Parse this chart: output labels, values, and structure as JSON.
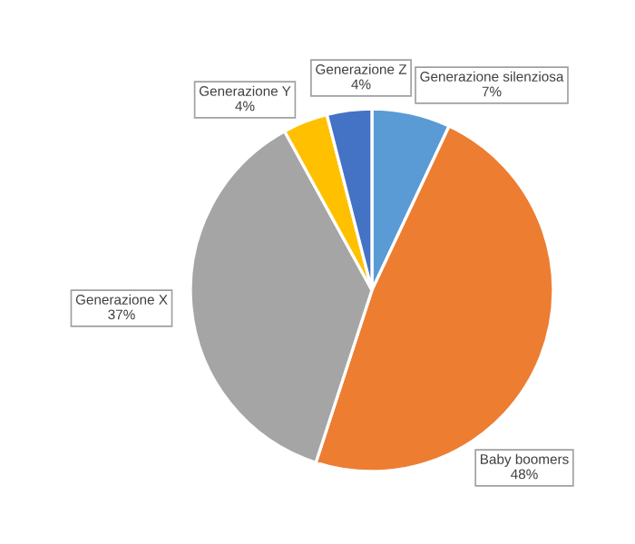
{
  "chart_data": {
    "type": "pie",
    "categories": [
      "Generazione silenziosa",
      "Baby boomers",
      "Generazione X",
      "Generazione Y",
      "Generazione Z"
    ],
    "values": [
      7,
      48,
      37,
      4,
      4
    ],
    "value_labels": [
      "7%",
      "48%",
      "37%",
      "4%",
      "4%"
    ],
    "colors": [
      "#5b9bd5",
      "#ed7d31",
      "#a5a5a5",
      "#ffc000",
      "#4472c4"
    ]
  }
}
